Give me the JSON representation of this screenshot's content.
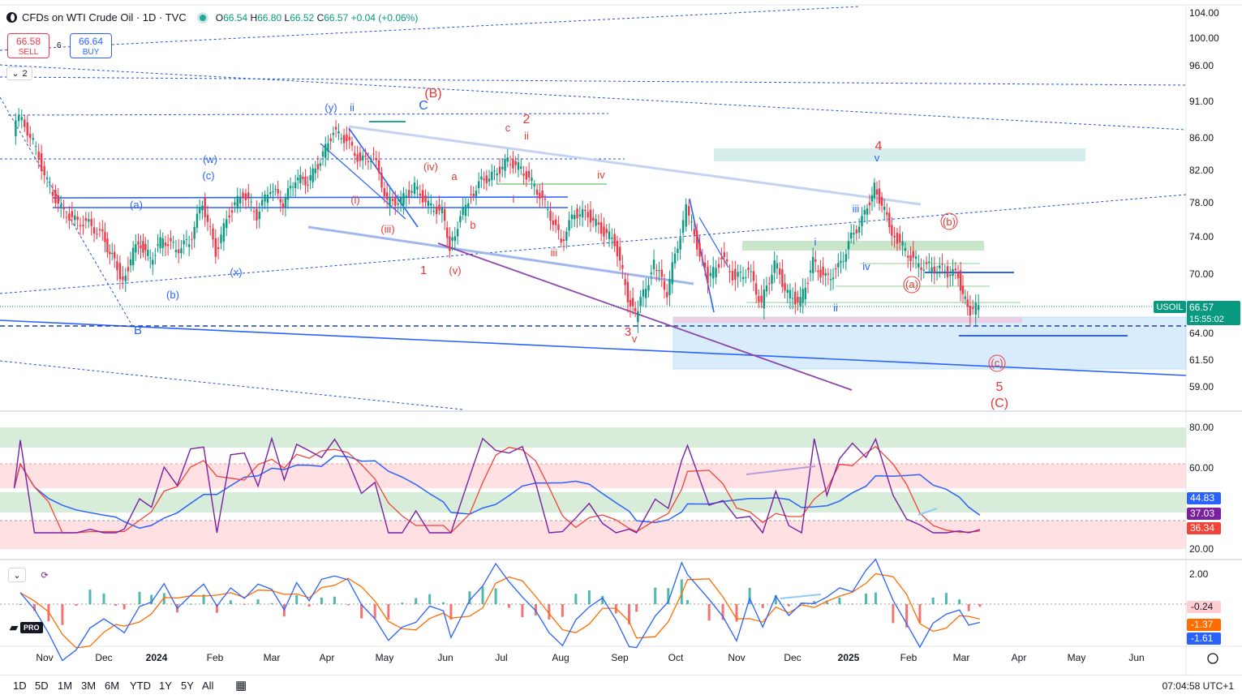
{
  "header": {
    "symbol_title": "CFDs on WTI Crude Oil · 1D · TVC",
    "ohlc": [
      {
        "k": "O",
        "v": "66.54"
      },
      {
        "k": "H",
        "v": "66.80"
      },
      {
        "k": "L",
        "v": "66.52"
      },
      {
        "k": "C",
        "v": "66.57"
      }
    ],
    "change": "+0.04 (+0.06%)"
  },
  "trade": {
    "sell_price": "66.58",
    "sell_label": "SELL",
    "spread": "6",
    "buy_price": "66.64",
    "buy_label": "BUY",
    "collapse_count": "2"
  },
  "price_axis": {
    "ticks": [
      "104.00",
      "100.00",
      "96.00",
      "91.00",
      "86.00",
      "82.00",
      "78.00",
      "74.00",
      "70.00",
      "64.00",
      "61.50",
      "59.00"
    ],
    "symbol_tag": "USOIL",
    "last_price": "66.57",
    "countdown": "15:55:02"
  },
  "rsi_axis": {
    "ticks": [
      "80.00",
      "60.00",
      "20.00"
    ],
    "values": [
      "44.83",
      "37.03",
      "36.34"
    ]
  },
  "macd_axis": {
    "ticks": [
      "2.00"
    ],
    "values": [
      "-0.24",
      "-1.37",
      "-1.61"
    ]
  },
  "time_axis": [
    "Nov",
    "Dec",
    "2024",
    "Feb",
    "Mar",
    "Apr",
    "May",
    "Jun",
    "Jul",
    "Aug",
    "Sep",
    "Oct",
    "Nov",
    "Dec",
    "2025",
    "Feb",
    "Mar",
    "Apr",
    "May",
    "Jun"
  ],
  "timeframes": [
    "1D",
    "5D",
    "1M",
    "3M",
    "6M",
    "YTD",
    "1Y",
    "5Y",
    "All"
  ],
  "clock": "07:04:58 UTC+1",
  "brand": {
    "pro": "PRO"
  },
  "colors": {
    "up": "#089981",
    "down": "#f23645",
    "blue": "#2962ff",
    "red_label": "#e53935",
    "purple": "#7b1fa2"
  },
  "chart_data": {
    "type": "candlestick",
    "title": "CFDs on WTI Crude Oil",
    "ylim": [
      57,
      106
    ],
    "close_series": [
      {
        "t": "2023-10-17",
        "c": 86.6
      },
      {
        "t": "2023-10-20",
        "c": 89.0
      },
      {
        "t": "2023-10-27",
        "c": 85.5
      },
      {
        "t": "2023-11-03",
        "c": 80.5
      },
      {
        "t": "2023-11-10",
        "c": 77.2
      },
      {
        "t": "2023-11-17",
        "c": 75.9
      },
      {
        "t": "2023-11-24",
        "c": 75.5
      },
      {
        "t": "2023-12-01",
        "c": 74.1
      },
      {
        "t": "2023-12-08",
        "c": 71.2
      },
      {
        "t": "2023-12-13",
        "c": 69.5
      },
      {
        "t": "2023-12-22",
        "c": 73.6
      },
      {
        "t": "2023-12-29",
        "c": 71.6
      },
      {
        "t": "2024-01-05",
        "c": 73.8
      },
      {
        "t": "2024-01-12",
        "c": 72.7
      },
      {
        "t": "2024-01-19",
        "c": 73.4
      },
      {
        "t": "2024-01-26",
        "c": 78.0
      },
      {
        "t": "2024-02-02",
        "c": 72.3
      },
      {
        "t": "2024-02-09",
        "c": 76.8
      },
      {
        "t": "2024-02-16",
        "c": 79.2
      },
      {
        "t": "2024-02-23",
        "c": 76.5
      },
      {
        "t": "2024-03-01",
        "c": 79.9
      },
      {
        "t": "2024-03-08",
        "c": 78.0
      },
      {
        "t": "2024-03-15",
        "c": 81.0
      },
      {
        "t": "2024-03-22",
        "c": 80.6
      },
      {
        "t": "2024-03-29",
        "c": 83.2
      },
      {
        "t": "2024-04-05",
        "c": 86.9
      },
      {
        "t": "2024-04-12",
        "c": 85.7
      },
      {
        "t": "2024-04-19",
        "c": 83.1
      },
      {
        "t": "2024-04-26",
        "c": 83.8
      },
      {
        "t": "2024-05-03",
        "c": 78.1
      },
      {
        "t": "2024-05-10",
        "c": 78.3
      },
      {
        "t": "2024-05-17",
        "c": 80.0
      },
      {
        "t": "2024-05-24",
        "c": 77.7
      },
      {
        "t": "2024-05-31",
        "c": 76.9
      },
      {
        "t": "2024-06-04",
        "c": 73.0
      },
      {
        "t": "2024-06-14",
        "c": 78.5
      },
      {
        "t": "2024-06-21",
        "c": 80.7
      },
      {
        "t": "2024-06-28",
        "c": 81.5
      },
      {
        "t": "2024-07-05",
        "c": 83.2
      },
      {
        "t": "2024-07-12",
        "c": 82.2
      },
      {
        "t": "2024-07-19",
        "c": 80.1
      },
      {
        "t": "2024-07-26",
        "c": 77.2
      },
      {
        "t": "2024-08-02",
        "c": 73.5
      },
      {
        "t": "2024-08-09",
        "c": 76.8
      },
      {
        "t": "2024-08-16",
        "c": 76.6
      },
      {
        "t": "2024-08-23",
        "c": 74.8
      },
      {
        "t": "2024-08-30",
        "c": 73.5
      },
      {
        "t": "2024-09-06",
        "c": 67.7
      },
      {
        "t": "2024-09-10",
        "c": 65.7
      },
      {
        "t": "2024-09-20",
        "c": 71.0
      },
      {
        "t": "2024-09-27",
        "c": 68.2
      },
      {
        "t": "2024-10-04",
        "c": 74.4
      },
      {
        "t": "2024-10-07",
        "c": 77.2
      },
      {
        "t": "2024-10-18",
        "c": 69.2
      },
      {
        "t": "2024-10-25",
        "c": 71.8
      },
      {
        "t": "2024-11-01",
        "c": 69.5
      },
      {
        "t": "2024-11-08",
        "c": 70.4
      },
      {
        "t": "2024-11-15",
        "c": 67.0
      },
      {
        "t": "2024-11-22",
        "c": 71.2
      },
      {
        "t": "2024-11-29",
        "c": 68.0
      },
      {
        "t": "2024-12-06",
        "c": 67.2
      },
      {
        "t": "2024-12-13",
        "c": 71.3
      },
      {
        "t": "2024-12-20",
        "c": 69.5
      },
      {
        "t": "2024-12-27",
        "c": 70.6
      },
      {
        "t": "2025-01-03",
        "c": 73.9
      },
      {
        "t": "2025-01-10",
        "c": 76.6
      },
      {
        "t": "2025-01-15",
        "c": 80.0
      },
      {
        "t": "2025-01-24",
        "c": 74.7
      },
      {
        "t": "2025-01-31",
        "c": 72.5
      },
      {
        "t": "2025-02-07",
        "c": 71.0
      },
      {
        "t": "2025-02-14",
        "c": 70.7
      },
      {
        "t": "2025-02-21",
        "c": 70.4
      },
      {
        "t": "2025-02-28",
        "c": 69.8
      },
      {
        "t": "2025-03-05",
        "c": 66.3
      },
      {
        "t": "2025-03-11",
        "c": 66.57
      }
    ],
    "last_close": 66.57,
    "elliott_labels": [
      "(y)",
      "ii",
      "C",
      "(B)",
      "2",
      "c",
      "ii",
      "(w)",
      "(c)",
      "(a)",
      "(i)",
      "(iii)",
      "(iv)",
      "a",
      "i",
      "iv",
      "(x)",
      "(b)",
      "B",
      "1",
      "(v)",
      "b",
      "iii",
      "3",
      "v",
      "4",
      "v",
      "iii",
      "i",
      "iv",
      "ii",
      "(b)",
      "(a)",
      "(c)",
      "5",
      "(C)"
    ],
    "rsi": {
      "current": 37.03,
      "ma": 36.34,
      "bb_mid": 44.83,
      "levels": [
        80,
        60,
        20
      ]
    },
    "macd": {
      "histogram": -0.24,
      "signal": -1.37,
      "macd": -1.61
    }
  }
}
